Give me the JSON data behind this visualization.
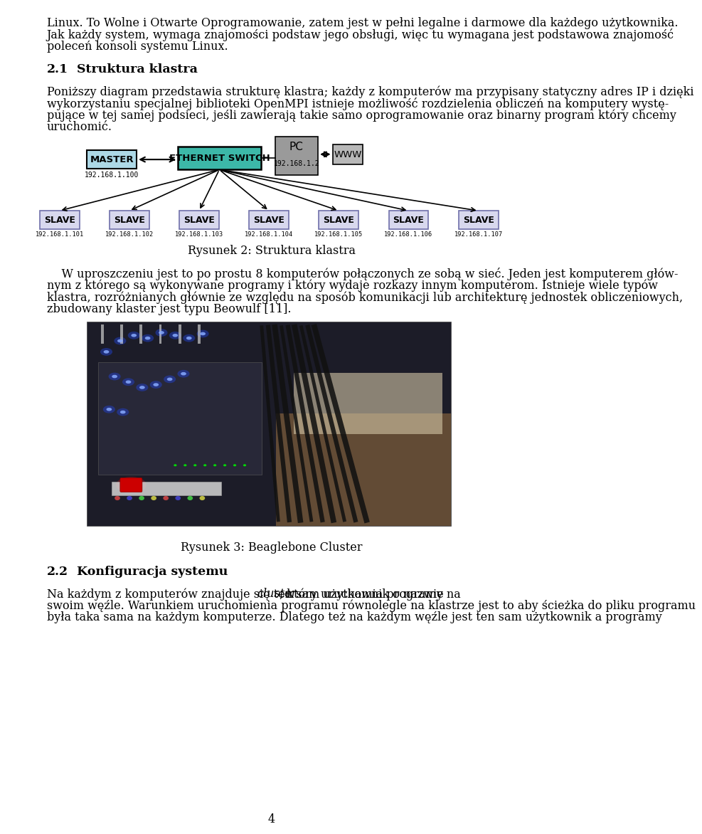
{
  "title_line1": "Linux. To Wolne i Otwarte Oprogramowanie, zatem jest w pełni legalne i darmowe dla każdego użytkownika.",
  "title_line2": "Jak każdy system, wymaga znajomości podstaw jego obsługi, więc tu wymagana jest podstawowa znajomość",
  "title_line3": "poleceń konsoli systemu Linux.",
  "section_num": "2.1",
  "section_title": "Struktura klastra",
  "para1_line1": "Poniższy diagram przedstawia strukturę klastra; każdy z komputerów ma przypisany statyczny adres IP i dzięki",
  "para1_line2": "wykorzystaniu specjalnej biblioteki OpenMPI istnieje możliwość rozdzielenia obliczeń na komputery wystę-",
  "para1_line3": "pujące w tej samej podsieci, jeśli zawierają takie samo oprogramowanie oraz binarny program który chcemy",
  "para1_line4": "uruchomić.",
  "fig2_caption": "Rysunek 2: Struktura klastra",
  "para2_line1": "    W uproszczeniu jest to po prostu 8 komputerów połączonych ze sobą w sieć. Jeden jest komputerem głów-",
  "para2_line2": "nym z którego są wykonywane programy i który wydaje rozkazy innym komputerom. Istnieje wiele typów",
  "para2_line3": "klastra, rozróżnianych głównie ze względu na sposób komunikacji lub architekturę jednostek obliczeniowych,",
  "para2_line4": "zbudowany klaster jest typu Beowulf [11].",
  "fig3_caption": "Rysunek 3: Beaglebone Cluster",
  "section2_num": "2.2",
  "section2_title": "Konfiguracja systemu",
  "para3_line1a": "Na każdym z komputerów znajduje się ten sam użytkownik o nazwie ",
  "para3_line1b": "cluster",
  "para3_line1c": ", który uruchamia programy na",
  "para3_line2": "swoim węźle. Warunkiem uruchomienia programu równolegle na klastrze jest to aby ścieżka do pliku programu",
  "para3_line3": "była taka sama na każdym komputerze. Dlatego też na każdym węźle jest ten sam użytkownik a programy",
  "page_num": "4",
  "bg_color": "#ffffff",
  "text_color": "#000000",
  "master_box_color": "#add8e6",
  "switch_box_color": "#3cb8a8",
  "pc_box_color": "#9a9a9a",
  "www_box_color": "#b8b8b8",
  "slave_box_color": "#d8d8ee",
  "slave_border_color": "#7070aa",
  "slave_ips": [
    "192.168.1.101",
    "192.168.1.102",
    "192.168.1.103",
    "192.168.1.104",
    "192.168.1.105",
    "192.168.1.106",
    "192.168.1.107"
  ]
}
